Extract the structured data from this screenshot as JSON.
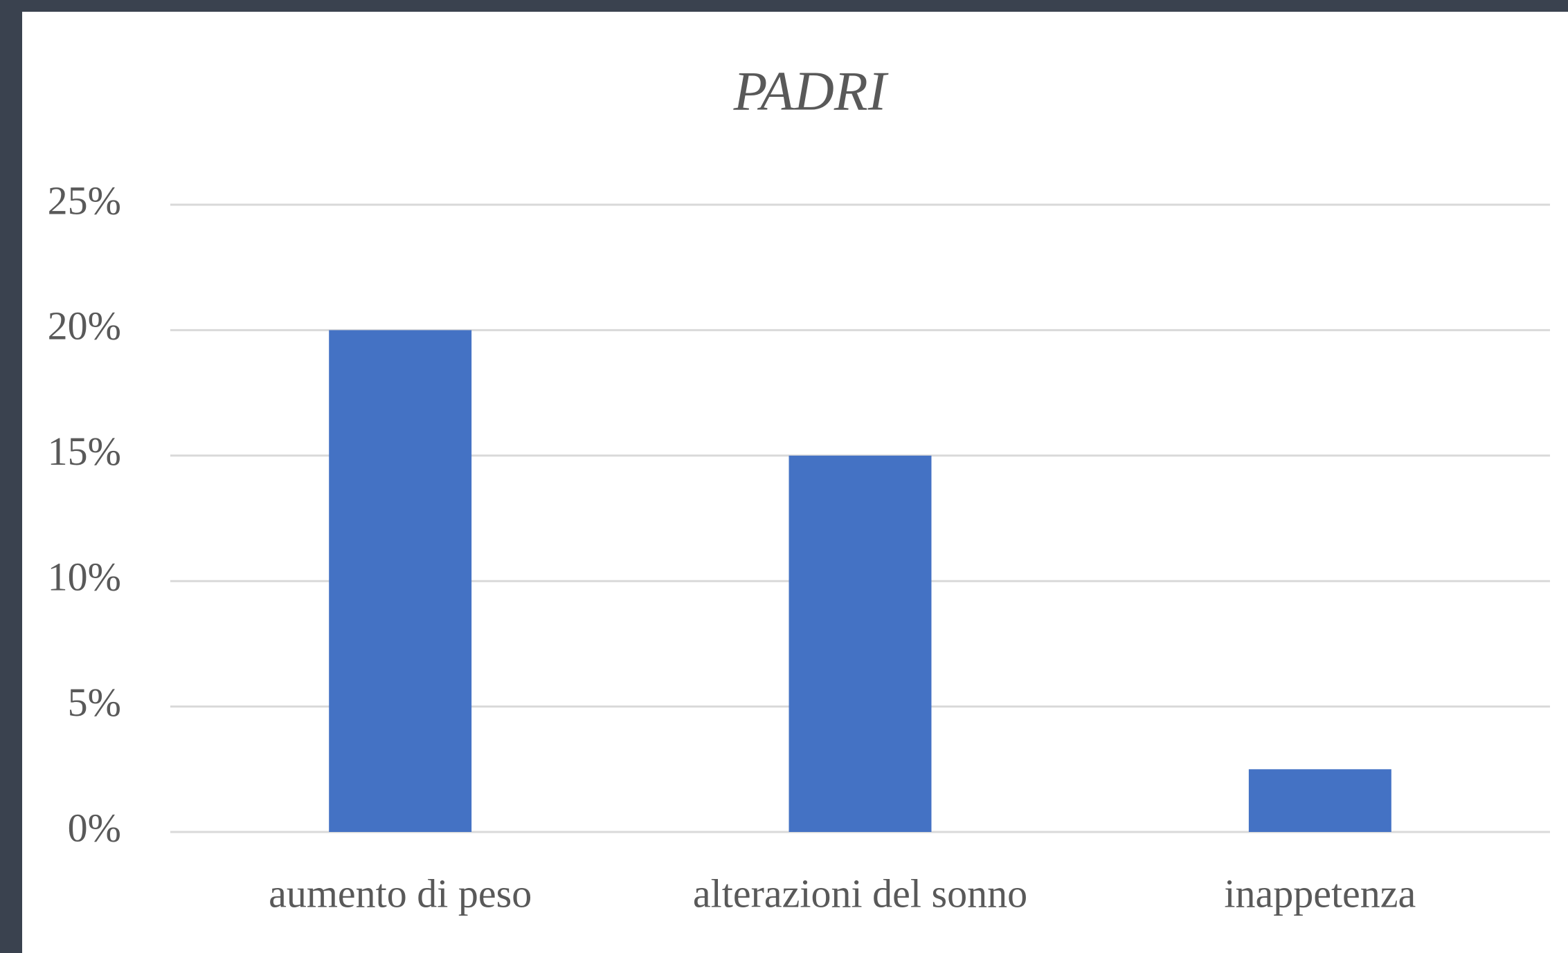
{
  "chart_data": {
    "type": "bar",
    "title": "PADRI",
    "categories": [
      "aumento di peso",
      "alterazioni del sonno",
      "inappetenza"
    ],
    "values": [
      20,
      15,
      2.5
    ],
    "color": "#4472c4",
    "ylim": [
      0,
      25
    ],
    "yticks": [
      {
        "value": 0,
        "label": "0%"
      },
      {
        "value": 5,
        "label": "5%"
      },
      {
        "value": 10,
        "label": "10%"
      },
      {
        "value": 15,
        "label": "15%"
      },
      {
        "value": 20,
        "label": "20%"
      },
      {
        "value": 25,
        "label": "25%"
      }
    ],
    "grid": true
  }
}
